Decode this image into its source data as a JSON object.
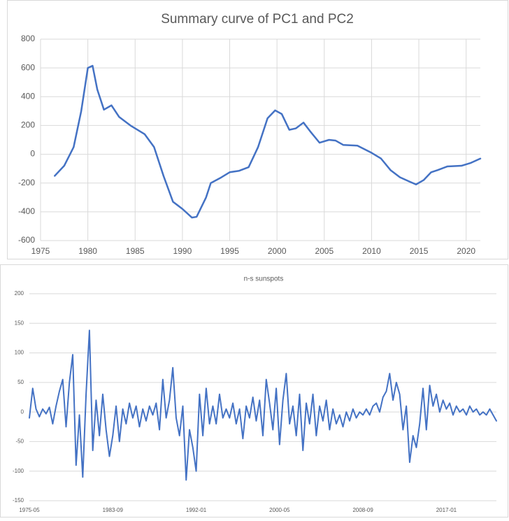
{
  "chart_data": [
    {
      "type": "line",
      "title": "Summary curve of PC1 and PC2",
      "grid": "both",
      "xlim": [
        1975,
        2021.5
      ],
      "xticks": [
        1975,
        1980,
        1985,
        1990,
        1995,
        2000,
        2005,
        2010,
        2015,
        2020
      ],
      "ylim": [
        -600,
        800
      ],
      "yticks": [
        -600,
        -400,
        -200,
        0,
        200,
        400,
        600,
        800
      ],
      "x": [
        1976.5,
        1977.5,
        1978.5,
        1979.3,
        1980,
        1980.5,
        1981,
        1981.7,
        1982.5,
        1983.3,
        1984.5,
        1986,
        1987,
        1988,
        1989,
        1990,
        1991,
        1991.5,
        1992.5,
        1993,
        1994,
        1995,
        1996,
        1997,
        1998,
        1999,
        1999.8,
        2000.5,
        2001.3,
        2002,
        2002.8,
        2003.5,
        2004.5,
        2005.5,
        2006.2,
        2007,
        2008.5,
        2010,
        2011,
        2012,
        2013,
        2014,
        2014.7,
        2015.5,
        2016.3,
        2017,
        2018,
        2019.5,
        2020.5,
        2021.5
      ],
      "series": [
        {
          "color": "#4472c4",
          "values": [
            -150,
            -80,
            50,
            300,
            600,
            615,
            450,
            310,
            340,
            260,
            200,
            140,
            50,
            -150,
            -330,
            -380,
            -440,
            -435,
            -300,
            -200,
            -165,
            -125,
            -115,
            -90,
            50,
            250,
            305,
            280,
            170,
            180,
            220,
            160,
            80,
            100,
            95,
            65,
            60,
            10,
            -30,
            -110,
            -160,
            -190,
            -210,
            -180,
            -125,
            -110,
            -85,
            -80,
            -60,
            -30
          ]
        }
      ]
    },
    {
      "type": "line",
      "title": "n-s sunspots",
      "grid": "y",
      "ylim": [
        -150,
        200
      ],
      "yticks": [
        -150,
        -100,
        -50,
        0,
        50,
        100,
        150,
        200
      ],
      "categories": [
        "1975-05",
        null,
        null,
        null,
        null,
        null,
        null,
        null,
        null,
        null,
        null,
        null,
        null,
        null,
        null,
        null,
        null,
        null,
        null,
        null,
        null,
        null,
        null,
        null,
        null,
        "1983-09",
        null,
        null,
        null,
        null,
        null,
        null,
        null,
        null,
        null,
        null,
        null,
        null,
        null,
        null,
        null,
        null,
        null,
        null,
        null,
        null,
        null,
        null,
        null,
        null,
        "1992-01",
        null,
        null,
        null,
        null,
        null,
        null,
        null,
        null,
        null,
        null,
        null,
        null,
        null,
        null,
        null,
        null,
        null,
        null,
        null,
        null,
        null,
        null,
        null,
        null,
        "2000-05",
        null,
        null,
        null,
        null,
        null,
        null,
        null,
        null,
        null,
        null,
        null,
        null,
        null,
        null,
        null,
        null,
        null,
        null,
        null,
        null,
        null,
        null,
        null,
        null,
        "2008-09",
        null,
        null,
        null,
        null,
        null,
        null,
        null,
        null,
        null,
        null,
        null,
        null,
        null,
        null,
        null,
        null,
        null,
        null,
        null,
        null,
        null,
        null,
        null,
        null,
        "2017-01",
        null,
        null,
        null,
        null,
        null,
        null,
        null,
        null,
        null,
        null,
        null,
        null,
        null,
        null,
        null
      ],
      "series": [
        {
          "color": "#4472c4",
          "values": [
            -10,
            40,
            5,
            -8,
            5,
            -3,
            8,
            -20,
            10,
            35,
            55,
            -25,
            50,
            97,
            -90,
            -5,
            -110,
            30,
            138,
            -65,
            20,
            -40,
            30,
            -30,
            -75,
            -40,
            10,
            -50,
            5,
            -20,
            15,
            -10,
            10,
            -25,
            5,
            -15,
            10,
            -5,
            15,
            -30,
            55,
            -10,
            20,
            75,
            -10,
            -40,
            10,
            -115,
            -30,
            -60,
            -100,
            30,
            -40,
            40,
            -20,
            10,
            -20,
            30,
            -10,
            5,
            -10,
            15,
            -20,
            5,
            -45,
            10,
            -10,
            25,
            -15,
            20,
            -40,
            55,
            15,
            -30,
            40,
            -55,
            20,
            65,
            -20,
            10,
            -40,
            30,
            -65,
            15,
            -20,
            30,
            -40,
            10,
            -15,
            20,
            -30,
            5,
            -20,
            -5,
            -25,
            0,
            -15,
            5,
            -10,
            0,
            -5,
            5,
            -5,
            10,
            15,
            0,
            25,
            35,
            65,
            20,
            50,
            30,
            -30,
            10,
            -85,
            -40,
            -60,
            -20,
            40,
            -30,
            45,
            10,
            30,
            0,
            20,
            5,
            15,
            -5,
            10,
            0,
            5,
            -5,
            10,
            0,
            5,
            -5,
            0,
            -5,
            5,
            -5,
            -15
          ]
        }
      ]
    }
  ]
}
